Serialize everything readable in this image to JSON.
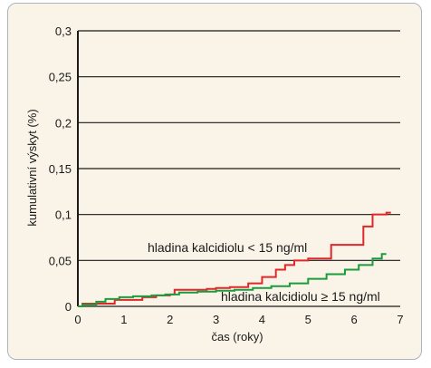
{
  "chart_data": {
    "type": "line",
    "title": "",
    "xlabel": "čas (roky)",
    "ylabel": "kumulativní výskyt (%)",
    "xlim": [
      0,
      7
    ],
    "ylim": [
      0,
      0.3
    ],
    "x_ticks": [
      0,
      1,
      2,
      3,
      4,
      5,
      6,
      7
    ],
    "x_tick_labels": [
      "0",
      "1",
      "2",
      "3",
      "4",
      "5",
      "6",
      "7"
    ],
    "y_ticks": [
      0,
      0.05,
      0.1,
      0.15,
      0.2,
      0.25,
      0.3
    ],
    "y_tick_labels": [
      "0",
      "0,05",
      "0,1",
      "0,15",
      "0,2",
      "0,25",
      "0,3"
    ],
    "grid": "horizontal",
    "series": [
      {
        "name": "hladina kalcidiolu < 15 ng/ml",
        "color": "#e0272a",
        "step": true,
        "x": [
          0,
          0.1,
          0.8,
          1.4,
          1.7,
          2.0,
          2.1,
          2.8,
          3.0,
          3.3,
          3.7,
          4.0,
          4.3,
          4.5,
          4.7,
          5.0,
          5.5,
          6.2,
          6.4,
          6.7
        ],
        "y": [
          0,
          0.003,
          0.007,
          0.01,
          0.012,
          0.013,
          0.018,
          0.019,
          0.02,
          0.021,
          0.025,
          0.032,
          0.04,
          0.045,
          0.05,
          0.052,
          0.067,
          0.087,
          0.1,
          0.102
        ]
      },
      {
        "name": "hladina kalcidiolu ≥ 15 ng/ml",
        "color": "#1a9c3c",
        "step": true,
        "x": [
          0,
          0.1,
          0.4,
          0.6,
          0.9,
          1.2,
          1.6,
          1.9,
          2.2,
          2.6,
          3.0,
          3.4,
          3.8,
          4.2,
          4.6,
          5.0,
          5.4,
          5.8,
          6.1,
          6.4,
          6.6
        ],
        "y": [
          0,
          0.002,
          0.005,
          0.008,
          0.01,
          0.011,
          0.012,
          0.013,
          0.015,
          0.016,
          0.017,
          0.018,
          0.02,
          0.022,
          0.025,
          0.03,
          0.035,
          0.04,
          0.045,
          0.052,
          0.057
        ]
      }
    ]
  }
}
